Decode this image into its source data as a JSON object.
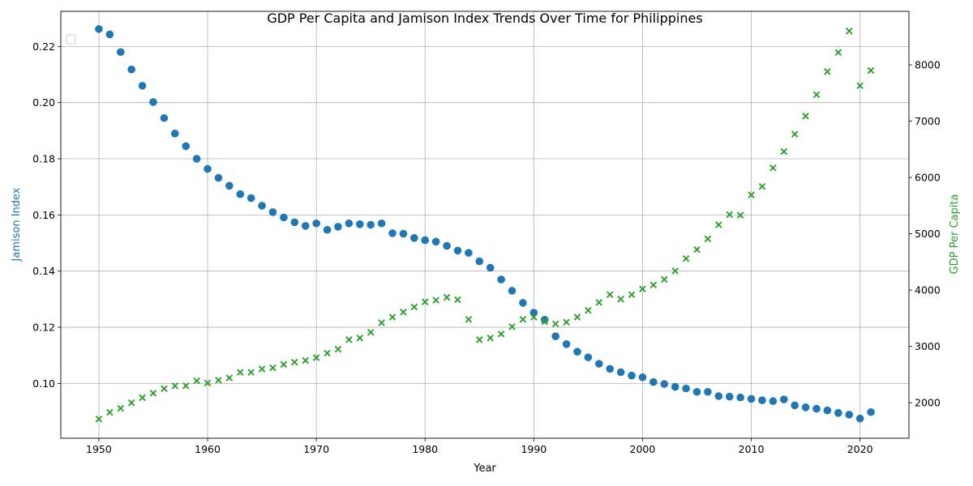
{
  "chart_data": {
    "type": "scatter",
    "title": "GDP Per Capita and Jamison Index Trends Over Time for Philippines",
    "xlabel": "Year",
    "ylabel_left": "Jamison Index",
    "ylabel_right": "GDP Per Capita",
    "xlim": [
      1946.5,
      2024.5
    ],
    "ylim_left": [
      0.0805,
      0.2325
    ],
    "ylim_right": [
      1370,
      8950
    ],
    "x_ticks": [
      1950,
      1960,
      1970,
      1980,
      1990,
      2000,
      2010,
      2020
    ],
    "y_ticks_left": [
      0.1,
      0.12,
      0.14,
      0.16,
      0.18,
      0.2,
      0.22
    ],
    "y_ticks_left_labels": [
      "0.10",
      "0.12",
      "0.14",
      "0.16",
      "0.18",
      "0.20",
      "0.22"
    ],
    "y_ticks_right": [
      2000,
      3000,
      4000,
      5000,
      6000,
      7000,
      8000
    ],
    "grid": true,
    "legend": "top-left, empty",
    "colors": {
      "jamison": "#1f77b4",
      "gdp": "#2ca02c"
    },
    "years": [
      1950,
      1951,
      1952,
      1953,
      1954,
      1955,
      1956,
      1957,
      1958,
      1959,
      1960,
      1961,
      1962,
      1963,
      1964,
      1965,
      1966,
      1967,
      1968,
      1969,
      1970,
      1971,
      1972,
      1973,
      1974,
      1975,
      1976,
      1977,
      1978,
      1979,
      1980,
      1981,
      1982,
      1983,
      1984,
      1985,
      1986,
      1987,
      1988,
      1989,
      1990,
      1991,
      1992,
      1993,
      1994,
      1995,
      1996,
      1997,
      1998,
      1999,
      2000,
      2001,
      2002,
      2003,
      2004,
      2005,
      2006,
      2007,
      2008,
      2009,
      2010,
      2011,
      2012,
      2013,
      2014,
      2015,
      2016,
      2017,
      2018,
      2019,
      2020,
      2021
    ],
    "series": [
      {
        "name": "Jamison Index",
        "axis": "left",
        "marker": "circle",
        "values": [
          0.2262,
          0.2243,
          0.218,
          0.2118,
          0.206,
          0.2002,
          0.1945,
          0.189,
          0.1845,
          0.18,
          0.1764,
          0.1732,
          0.1704,
          0.1674,
          0.166,
          0.1633,
          0.161,
          0.1591,
          0.1574,
          0.1561,
          0.157,
          0.1547,
          0.1558,
          0.157,
          0.1567,
          0.1565,
          0.157,
          0.1535,
          0.1533,
          0.1518,
          0.151,
          0.1505,
          0.149,
          0.1473,
          0.1465,
          0.1435,
          0.1412,
          0.137,
          0.133,
          0.1287,
          0.1252,
          0.1227,
          0.1168,
          0.114,
          0.1113,
          0.1093,
          0.107,
          0.1052,
          0.104,
          0.1028,
          0.1022,
          0.1005,
          0.0998,
          0.0988,
          0.0982,
          0.097,
          0.097,
          0.0955,
          0.0953,
          0.095,
          0.0945,
          0.094,
          0.0937,
          0.0943,
          0.0922,
          0.0915,
          0.091,
          0.0904,
          0.0895,
          0.0889,
          0.0875,
          0.0898
        ]
      },
      {
        "name": "GDP Per Capita",
        "axis": "right",
        "marker": "x",
        "values": [
          1710,
          1830,
          1900,
          2000,
          2090,
          2170,
          2250,
          2300,
          2300,
          2390,
          2350,
          2400,
          2440,
          2540,
          2540,
          2600,
          2620,
          2680,
          2720,
          2750,
          2800,
          2880,
          2950,
          3120,
          3150,
          3250,
          3420,
          3520,
          3610,
          3700,
          3790,
          3820,
          3870,
          3830,
          3480,
          3120,
          3150,
          3220,
          3350,
          3480,
          3520,
          3440,
          3400,
          3430,
          3520,
          3640,
          3780,
          3920,
          3840,
          3920,
          4020,
          4090,
          4190,
          4340,
          4560,
          4720,
          4910,
          5160,
          5340,
          5330,
          5690,
          5840,
          6170,
          6460,
          6770,
          7090,
          7470,
          7880,
          8220,
          8600,
          7630,
          7900
        ]
      }
    ]
  }
}
